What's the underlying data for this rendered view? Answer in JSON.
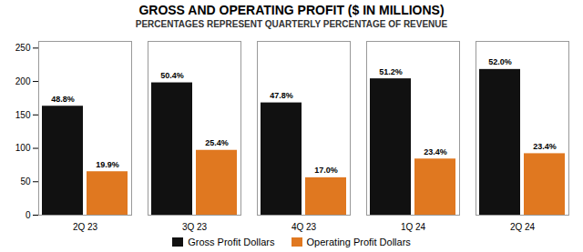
{
  "chart_data": {
    "type": "bar",
    "title": "GROSS AND OPERATING PROFIT ($ IN MILLIONS)",
    "subtitle": "PERCENTAGES REPRESENT QUARTERLY PERCENTAGE OF REVENUE",
    "categories": [
      "2Q 23",
      "3Q 23",
      "4Q 23",
      "1Q 24",
      "2Q 24"
    ],
    "series": [
      {
        "name": "Gross Profit Dollars",
        "color": "#111111",
        "values": [
          163,
          198,
          168,
          204,
          218
        ],
        "annotations": [
          "48.8%",
          "50.4%",
          "47.8%",
          "51.2%",
          "52.0%"
        ]
      },
      {
        "name": "Operating Profit Dollars",
        "color": "#e07820",
        "values": [
          65,
          97,
          56,
          84,
          92
        ],
        "annotations": [
          "19.9%",
          "25.4%",
          "17.0%",
          "23.4%",
          "23.4%"
        ]
      }
    ],
    "ylim": [
      0,
      260
    ],
    "yticks": [
      0,
      50,
      100,
      150,
      200,
      250
    ],
    "grid": false,
    "legend": "bottom"
  }
}
